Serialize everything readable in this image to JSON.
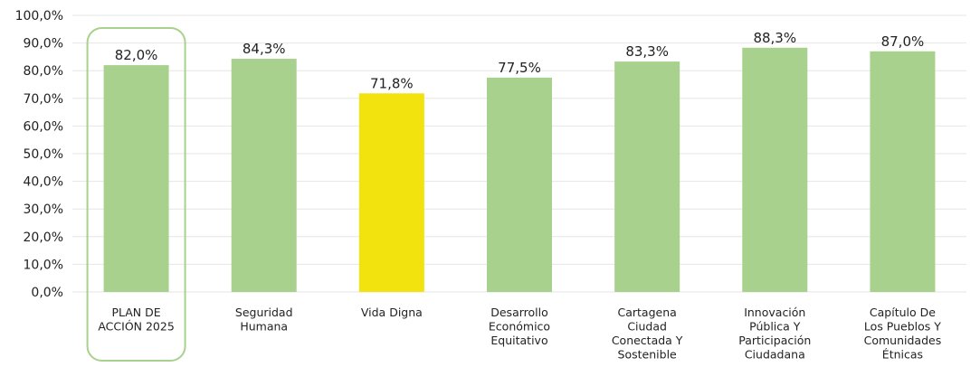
{
  "chart_data": {
    "type": "bar",
    "categories": [
      [
        "PLAN DE",
        "ACCIÓN 2025"
      ],
      [
        "Seguridad",
        "Humana"
      ],
      [
        "Vida Digna"
      ],
      [
        "Desarrollo",
        "Económico",
        "Equitativo"
      ],
      [
        "Cartagena",
        "Ciudad",
        "Conectada Y",
        "Sostenible"
      ],
      [
        "Innovación",
        "Pública Y",
        "Participación",
        "Ciudadana"
      ],
      [
        "Capítulo De",
        "Los Pueblos Y",
        "Comunidades",
        "Étnicas"
      ]
    ],
    "values": [
      82.0,
      84.3,
      71.8,
      77.5,
      83.3,
      88.3,
      87.0
    ],
    "value_labels": [
      "82,0%",
      "84,3%",
      "71,8%",
      "77,5%",
      "83,3%",
      "88,3%",
      "87,0%"
    ],
    "ylim": [
      0,
      100
    ],
    "yticks": [
      "0,0%",
      "10,0%",
      "20,0%",
      "30,0%",
      "40,0%",
      "50,0%",
      "60,0%",
      "70,0%",
      "80,0%",
      "90,0%",
      "100,0%"
    ],
    "grid": true,
    "highlighted_category_index": 0,
    "highlighted_bar_index": 2,
    "colors": {
      "bar": "#a9d18e",
      "highlight_bar": "#f2e20e",
      "highlight_box": "#a9d18e",
      "grid": "#e6e6e6"
    }
  }
}
